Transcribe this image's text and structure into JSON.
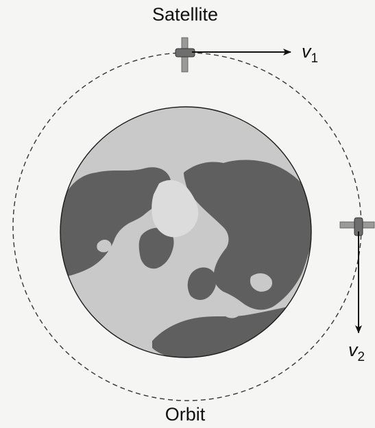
{
  "labels": {
    "satellite": "Satellite",
    "orbit": "Orbit",
    "v1_main": "v",
    "v1_sub": "1",
    "v2_main": "v",
    "v2_sub": "2"
  },
  "colors": {
    "background": "#f5f5f3",
    "ocean": "#c9c9c9",
    "land": "#5f5f5f",
    "ice": "#d9d9d9",
    "outline": "#1a1a1a",
    "orbit": "#333333",
    "satellite_body": "#6e6e6e",
    "satellite_panel": "#9a9a9a"
  },
  "icons": {
    "satellite_top": "satellite-icon",
    "satellite_right": "satellite-icon",
    "earth": "earth-globe-icon"
  }
}
